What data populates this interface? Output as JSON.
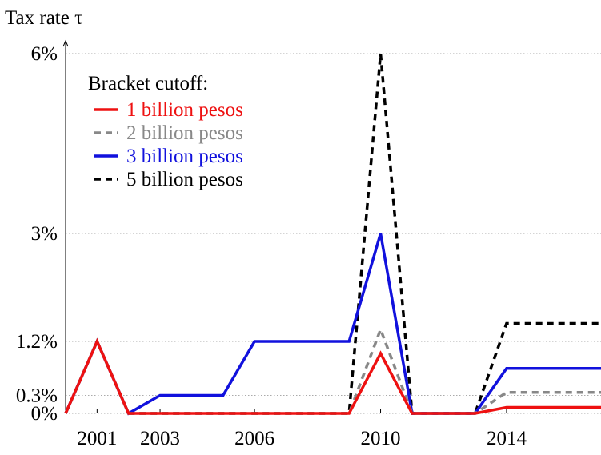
{
  "chart_data": {
    "type": "line",
    "y_label": "Tax rate τ",
    "legend_title": "Bracket cutoff:",
    "x": [
      2000,
      2001,
      2002,
      2003,
      2004,
      2005,
      2006,
      2007,
      2008,
      2009,
      2010,
      2011,
      2012,
      2013,
      2014,
      2015,
      2016,
      2017
    ],
    "series": [
      {
        "name": "1 billion pesos",
        "color": "#ee1111",
        "dash": "solid",
        "values": [
          0,
          1.2,
          0,
          0,
          0,
          0,
          0,
          0,
          0,
          0,
          1.0,
          0,
          0,
          0,
          0.1,
          0.1,
          0.1,
          0.1
        ]
      },
      {
        "name": "2 billion pesos",
        "color": "#888888",
        "dash": "dashed",
        "values": [
          0,
          1.2,
          0,
          0,
          0,
          0,
          0,
          0,
          0,
          0,
          1.4,
          0,
          0,
          0,
          0.35,
          0.35,
          0.35,
          0.35
        ]
      },
      {
        "name": "3 billion pesos",
        "color": "#1111dd",
        "dash": "solid",
        "values": [
          0,
          1.2,
          0,
          0.3,
          0.3,
          0.3,
          1.2,
          1.2,
          1.2,
          1.2,
          3,
          0,
          0,
          0,
          0.75,
          0.75,
          0.75,
          0.75
        ]
      },
      {
        "name": "5 billion pesos",
        "color": "#000000",
        "dash": "dashed",
        "values": [
          0,
          1.2,
          0,
          0,
          0,
          0,
          0,
          0,
          0,
          0,
          6,
          0,
          0,
          0,
          1.5,
          1.5,
          1.5,
          1.5
        ]
      }
    ],
    "xlim": [
      2000,
      2017
    ],
    "ylim": [
      0,
      6
    ],
    "xticks": [
      2001,
      2003,
      2006,
      2010,
      2014
    ],
    "yticks": [
      {
        "value": 0,
        "label": "0%"
      },
      {
        "value": 0.3,
        "label": "0.3%"
      },
      {
        "value": 1.2,
        "label": "1.2%"
      },
      {
        "value": 3,
        "label": "3%"
      },
      {
        "value": 6,
        "label": "6%"
      }
    ],
    "grid": true
  }
}
